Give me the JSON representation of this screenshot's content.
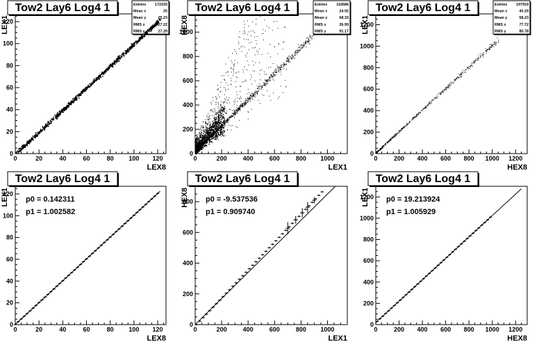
{
  "chart_data": [
    {
      "id": "p1",
      "type": "scatter",
      "title": "Tow2 Lay6 Log4 1",
      "xlabel": "LEX8",
      "ylabel": "LEX1",
      "xlim": [
        0,
        127
      ],
      "ylim": [
        0,
        127
      ],
      "xticks": [
        0,
        20,
        40,
        60,
        80,
        100,
        120
      ],
      "yticks": [
        0,
        20,
        40,
        60,
        80,
        100,
        120
      ],
      "stats": [
        [
          "Entries",
          "172193"
        ],
        [
          "Mean x",
          "25"
        ],
        [
          "Mean y",
          "25.23"
        ],
        [
          "RMS x",
          "27.22"
        ],
        [
          "RMS y",
          "27.29"
        ]
      ],
      "relation": {
        "slope": 1.0,
        "intercept": 0.1,
        "x_from": 0,
        "x_to": 122,
        "spread": 2
      }
    },
    {
      "id": "p2",
      "type": "scatter",
      "title": "Tow2 Lay6 Log4 1",
      "xlabel": "LEX1",
      "ylabel": "HEX8",
      "xlim": [
        0,
        1150
      ],
      "ylim": [
        0,
        1150
      ],
      "xticks": [
        0,
        200,
        400,
        600,
        800,
        1000
      ],
      "yticks": [
        0,
        200,
        400,
        600,
        800,
        1000
      ],
      "stats": [
        [
          "Entries",
          "116686"
        ],
        [
          "Mean x",
          "24.92"
        ],
        [
          "Mean y",
          "68.33"
        ],
        [
          "RMS x",
          "26.99"
        ],
        [
          "RMS y",
          "91.17"
        ]
      ],
      "relation": {
        "slope": 1.07,
        "intercept": 20,
        "x_from": 0,
        "x_to": 900,
        "spread": 25,
        "noise": true
      }
    },
    {
      "id": "p3",
      "type": "scatter",
      "title": "Tow2 Lay6 Log4 1",
      "xlabel": "HEX8",
      "ylabel": "LEX1",
      "xlim": [
        0,
        1300
      ],
      "ylim": [
        0,
        1300
      ],
      "xticks": [
        0,
        200,
        400,
        600,
        800,
        1000,
        1200
      ],
      "yticks": [
        0,
        200,
        400,
        600,
        800,
        1000,
        1200
      ],
      "stats": [
        [
          "Entries",
          "197919"
        ],
        [
          "Mean x",
          "40.29"
        ],
        [
          "Mean y",
          "58.23"
        ],
        [
          "RMS x",
          "77.72"
        ],
        [
          "RMS y",
          "80.78"
        ]
      ],
      "relation": {
        "slope": 1.0,
        "intercept": 10,
        "x_from": 0,
        "x_to": 1060,
        "spread": 20
      }
    },
    {
      "id": "p4",
      "type": "line",
      "title": "Tow2 Lay6 Log4 1",
      "xlabel": "LEX8",
      "ylabel": "LEX1",
      "xlim": [
        0,
        127
      ],
      "ylim": [
        0,
        127
      ],
      "xticks": [
        0,
        20,
        40,
        60,
        80,
        100,
        120
      ],
      "yticks": [
        0,
        20,
        40,
        60,
        80,
        100,
        120
      ],
      "fit": [
        "p0 = 0.142311",
        "p1 = 1.002582"
      ],
      "fit_params": {
        "p0": 0.142311,
        "p1": 1.002582
      },
      "profile": {
        "x_from": 0,
        "x_to": 122,
        "step": 2.5,
        "err": 0.5
      },
      "fit_line": [
        0,
        122
      ]
    },
    {
      "id": "p5",
      "type": "line",
      "title": "Tow2 Lay6 Log4 1",
      "xlabel": "LEX1",
      "ylabel": "HEX8",
      "xlim": [
        0,
        1150
      ],
      "ylim": [
        0,
        900
      ],
      "xticks": [
        0,
        200,
        400,
        600,
        800,
        1000
      ],
      "yticks": [
        0,
        200,
        400,
        600,
        800
      ],
      "fit": [
        "p0 = -9.537536",
        "p1 = 0.909740"
      ],
      "fit_params": {
        "p0": -9.537536,
        "p1": 0.90974
      },
      "profile": {
        "x_from": 10,
        "x_to": 960,
        "step": 25,
        "err": 4
      },
      "big_errors": [
        [
          700,
          40
        ],
        [
          760,
          25
        ],
        [
          810,
          30
        ],
        [
          850,
          35
        ],
        [
          900,
          20
        ]
      ],
      "fit_line": [
        0,
        1060
      ]
    },
    {
      "id": "p6",
      "type": "line",
      "title": "Tow2 Lay6 Log4 1",
      "xlabel": "HEX8",
      "ylabel": "LEX1",
      "xlim": [
        0,
        1300
      ],
      "ylim": [
        0,
        1300
      ],
      "xticks": [
        0,
        200,
        400,
        600,
        800,
        1000,
        1200
      ],
      "yticks": [
        0,
        200,
        400,
        600,
        800,
        1000,
        1200
      ],
      "fit": [
        "p0 = 19.213924",
        "p1 = 1.005929"
      ],
      "fit_params": {
        "p0": 19.213924,
        "p1": 1.005929
      },
      "profile": {
        "x_from": 10,
        "x_to": 1000,
        "step": 25,
        "err": 4
      },
      "fit_line": [
        0,
        1250
      ]
    }
  ]
}
